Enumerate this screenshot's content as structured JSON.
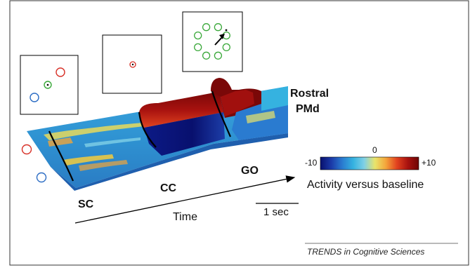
{
  "labels": {
    "region": [
      "Rostral",
      "PMd"
    ],
    "epoch_sc": "SC",
    "epoch_cc": "CC",
    "epoch_go": "GO",
    "time_axis": "Time",
    "scale_bar": "1 sec",
    "colorbar_min": "-10",
    "colorbar_mid": "0",
    "colorbar_max": "+10",
    "colorbar_title": "Activity versus baseline",
    "source": "TRENDS in Cognitive Sciences"
  },
  "colors": {
    "target_red": "#d73027",
    "target_blue": "#2b6cc4",
    "target_green": "#3aa83a",
    "heat_low": "#08106e",
    "heat_mid": "#2aa6d8",
    "heat_high": "#8b0a0a"
  },
  "colorbar_stops": [
    "#08106e",
    "#1b3aa8",
    "#2a7bd0",
    "#35b2e0",
    "#7fd0e6",
    "#e9e46a",
    "#f4a43a",
    "#e2421f",
    "#a8120f",
    "#6e0505"
  ]
}
